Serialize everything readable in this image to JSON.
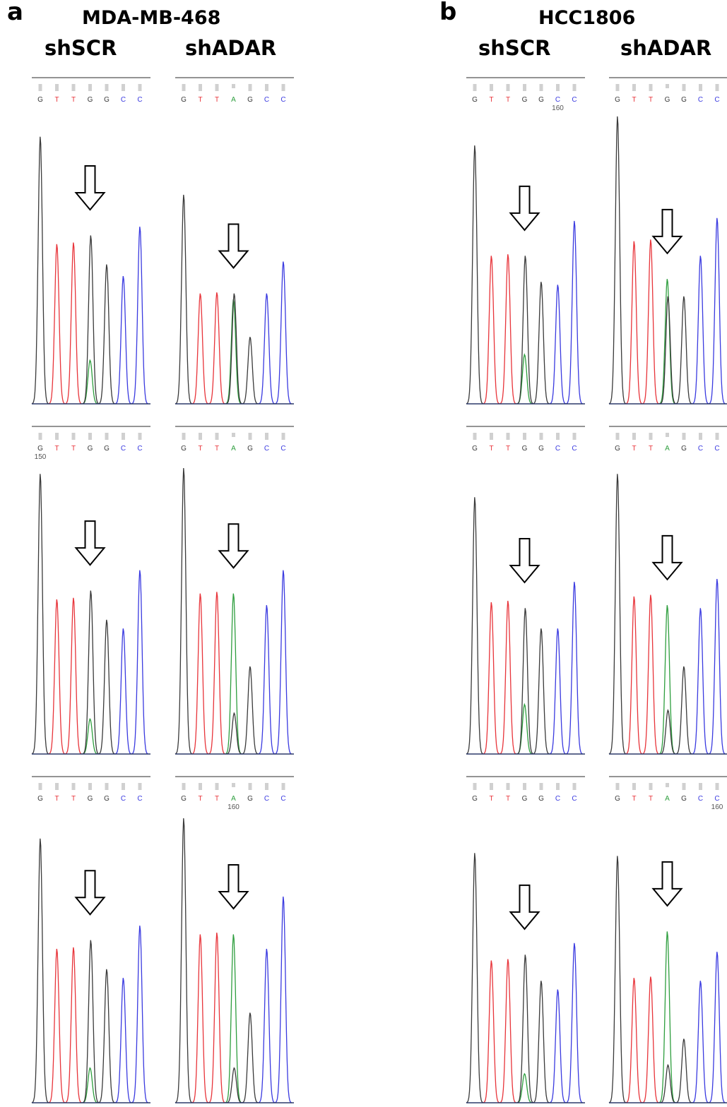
{
  "panels": [
    {
      "letter": "a",
      "title": "MDA-MB-468",
      "columns": [
        "shSCR",
        "shADAR"
      ],
      "rows": [
        {
          "shSCR": {
            "bases": [
              "G",
              "T",
              "T",
              "G",
              "G",
              "C",
              "C"
            ],
            "position_label": "",
            "position_label_index": -1
          },
          "shADAR": {
            "bases": [
              "G",
              "T",
              "T",
              "A",
              "G",
              "C",
              "C"
            ],
            "position_label": "",
            "position_label_index": -1
          }
        },
        {
          "shSCR": {
            "bases": [
              "G",
              "T",
              "T",
              "G",
              "G",
              "C",
              "C"
            ],
            "position_label": "150",
            "position_label_index": 0
          },
          "shADAR": {
            "bases": [
              "G",
              "T",
              "T",
              "A",
              "G",
              "C",
              "C"
            ],
            "position_label": "",
            "position_label_index": -1
          }
        },
        {
          "shSCR": {
            "bases": [
              "G",
              "T",
              "T",
              "G",
              "G",
              "C",
              "C"
            ],
            "position_label": "",
            "position_label_index": -1
          },
          "shADAR": {
            "bases": [
              "G",
              "T",
              "T",
              "A",
              "G",
              "C",
              "C"
            ],
            "position_label": "160",
            "position_label_index": 3
          }
        }
      ]
    },
    {
      "letter": "b",
      "title": "HCC1806",
      "columns": [
        "shSCR",
        "shADAR"
      ],
      "rows": [
        {
          "shSCR": {
            "bases": [
              "G",
              "T",
              "T",
              "G",
              "G",
              "C",
              "C"
            ],
            "position_label": "160",
            "position_label_index": 5
          },
          "shADAR": {
            "bases": [
              "G",
              "T",
              "T",
              "G",
              "G",
              "C",
              "C"
            ],
            "position_label": "",
            "position_label_index": -1
          }
        },
        {
          "shSCR": {
            "bases": [
              "G",
              "T",
              "T",
              "G",
              "G",
              "C",
              "C"
            ],
            "position_label": "",
            "position_label_index": -1
          },
          "shADAR": {
            "bases": [
              "G",
              "T",
              "T",
              "A",
              "G",
              "C",
              "C"
            ],
            "position_label": "",
            "position_label_index": -1
          }
        },
        {
          "shSCR": {
            "bases": [
              "G",
              "T",
              "T",
              "G",
              "G",
              "C",
              "C"
            ],
            "position_label": "",
            "position_label_index": -1
          },
          "shADAR": {
            "bases": [
              "G",
              "T",
              "T",
              "A",
              "G",
              "C",
              "C"
            ],
            "position_label": "160",
            "position_label_index": 6
          }
        }
      ]
    }
  ],
  "base_colors": {
    "G": "#3a3a3a",
    "T": "#e8343a",
    "A": "#2e9e3e",
    "C": "#3a3ae0"
  },
  "edited_site_base_index": 3,
  "arrow_icon": "down-arrow-icon",
  "trace_peaks": [
    [
      {
        "shSCR": {
          "G1": 0.92,
          "T": 0.55,
          "site_G": 0.58,
          "site_A": 0.15,
          "G2": 0.48,
          "C1": 0.44,
          "C2": 0.61
        },
        "shADAR": {
          "G1": 0.72,
          "T": 0.38,
          "site_G": 0.38,
          "site_A": 0.36,
          "G2": 0.23,
          "C1": 0.38,
          "C2": 0.49
        }
      },
      {
        "shSCR": {
          "G1": 0.96,
          "T": 0.53,
          "site_G": 0.56,
          "site_A": 0.12,
          "G2": 0.46,
          "C1": 0.43,
          "C2": 0.63
        },
        "shADAR": {
          "G1": 0.98,
          "T": 0.55,
          "site_G": 0.14,
          "site_A": 0.55,
          "G2": 0.3,
          "C1": 0.51,
          "C2": 0.63
        }
      },
      {
        "shSCR": {
          "G1": 0.91,
          "T": 0.53,
          "site_G": 0.56,
          "site_A": 0.12,
          "G2": 0.46,
          "C1": 0.43,
          "C2": 0.61
        },
        "shADAR": {
          "G1": 0.98,
          "T": 0.58,
          "site_G": 0.12,
          "site_A": 0.58,
          "G2": 0.31,
          "C1": 0.53,
          "C2": 0.71
        }
      }
    ],
    [
      {
        "shSCR": {
          "G1": 0.89,
          "T": 0.51,
          "site_G": 0.51,
          "site_A": 0.17,
          "G2": 0.42,
          "C1": 0.41,
          "C2": 0.63
        },
        "shADAR": {
          "G1": 0.99,
          "T": 0.56,
          "site_G": 0.37,
          "site_A": 0.43,
          "G2": 0.37,
          "C1": 0.51,
          "C2": 0.64
        }
      },
      {
        "shSCR": {
          "G1": 0.88,
          "T": 0.52,
          "site_G": 0.5,
          "site_A": 0.17,
          "G2": 0.43,
          "C1": 0.43,
          "C2": 0.59
        },
        "shADAR": {
          "G1": 0.96,
          "T": 0.54,
          "site_G": 0.15,
          "site_A": 0.51,
          "G2": 0.3,
          "C1": 0.5,
          "C2": 0.6
        }
      },
      {
        "shSCR": {
          "G1": 0.86,
          "T": 0.49,
          "site_G": 0.51,
          "site_A": 0.1,
          "G2": 0.42,
          "C1": 0.39,
          "C2": 0.55
        },
        "shADAR": {
          "G1": 0.85,
          "T": 0.43,
          "site_G": 0.13,
          "site_A": 0.59,
          "G2": 0.22,
          "C1": 0.42,
          "C2": 0.52
        }
      }
    ]
  ]
}
